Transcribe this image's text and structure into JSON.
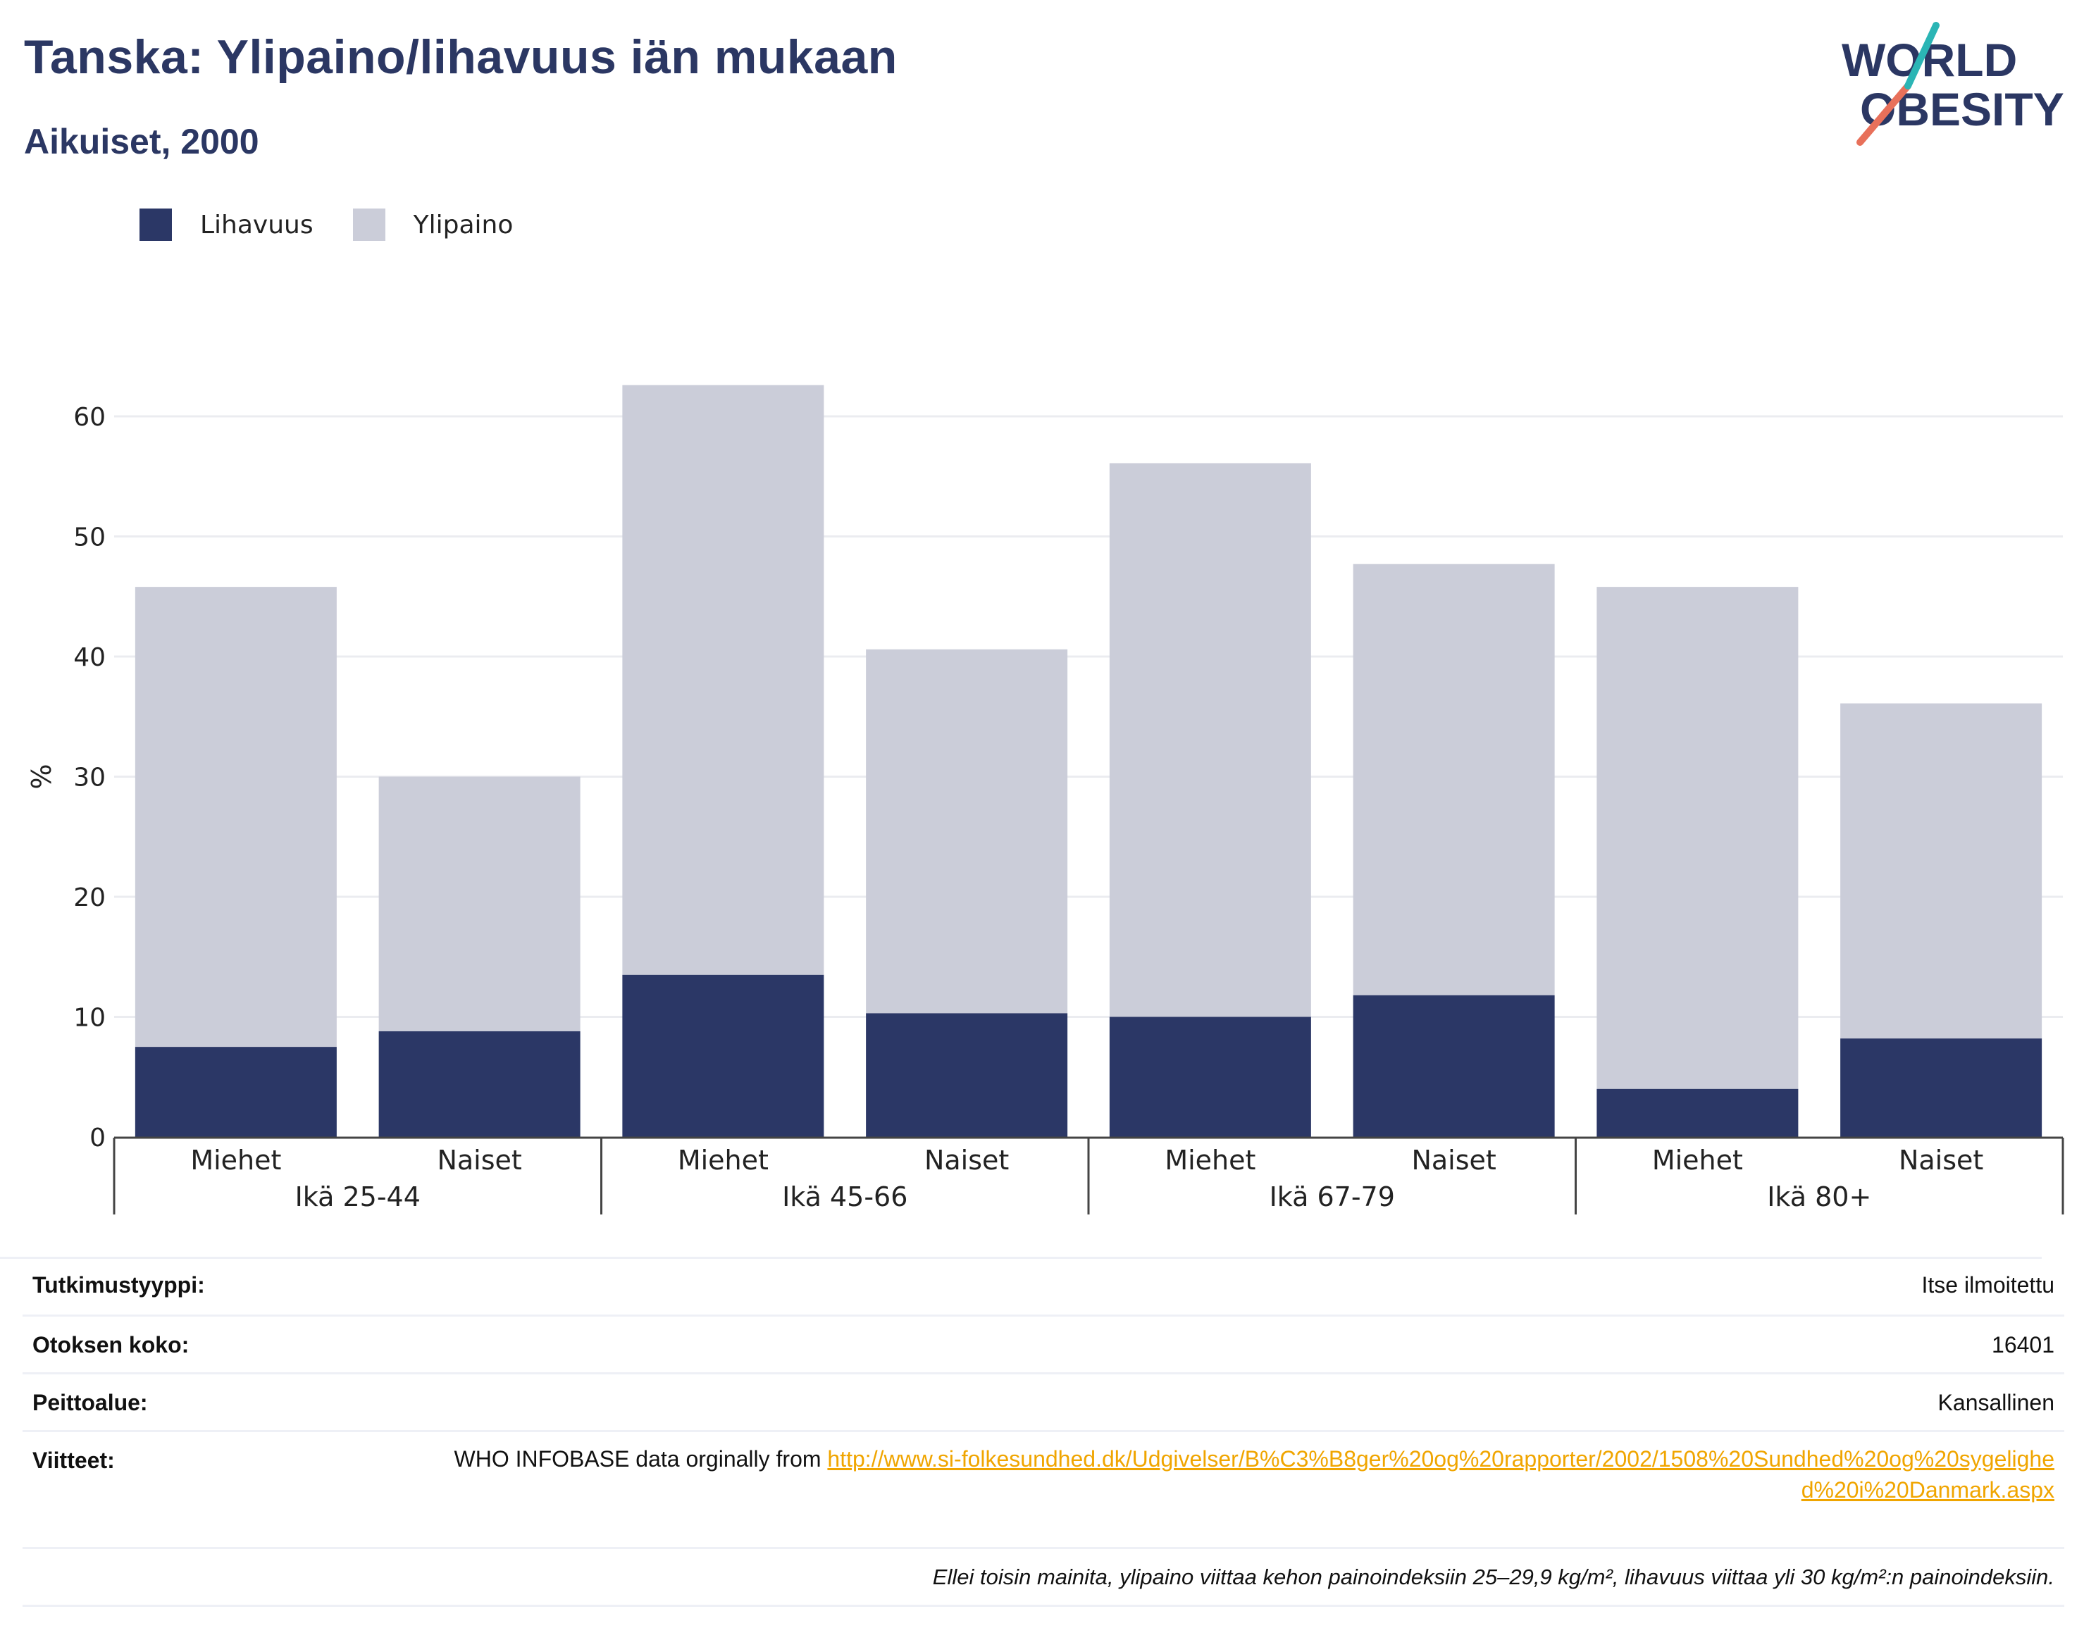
{
  "title": "Tanska: Ylipaino/lihavuus iän mukaan",
  "subtitle": "Aikuiset, 2000",
  "logo": {
    "line1": "WORLD",
    "line2": "OBESITY"
  },
  "colors": {
    "obesity": "#2b3766",
    "overweight": "#cbcdd9",
    "title": "#2b3763",
    "link": "#f0a500"
  },
  "legend": [
    {
      "label": "Lihavuus",
      "color": "#2b3766"
    },
    {
      "label": "Ylipaino",
      "color": "#cbcdd9"
    }
  ],
  "chart_data": {
    "type": "bar",
    "stacked": true,
    "ylabel": "%",
    "ylim": [
      0,
      65
    ],
    "yticks": [
      0,
      10,
      20,
      30,
      40,
      50,
      60
    ],
    "grid": true,
    "legend_position": "top-left",
    "groups": [
      "Ikä 25-44",
      "Ikä 45-66",
      "Ikä 67-79",
      "Ikä 80+"
    ],
    "categories": [
      "Miehet",
      "Naiset",
      "Miehet",
      "Naiset",
      "Miehet",
      "Naiset",
      "Miehet",
      "Naiset"
    ],
    "series": [
      {
        "name": "Lihavuus",
        "values": [
          7.5,
          8.8,
          13.5,
          10.3,
          10.0,
          11.8,
          4.0,
          8.2
        ]
      },
      {
        "name": "Ylipaino",
        "values": [
          38.3,
          21.2,
          49.1,
          30.3,
          46.1,
          35.9,
          41.8,
          27.9
        ]
      }
    ]
  },
  "meta": {
    "study_type": {
      "label": "Tutkimustyyppi:",
      "value": "Itse ilmoitettu"
    },
    "sample_size": {
      "label": "Otoksen koko:",
      "value": "16401"
    },
    "coverage": {
      "label": "Peittoalue:",
      "value": "Kansallinen"
    },
    "references": {
      "label": "Viitteet:",
      "text": "WHO INFOBASE data orginally from ",
      "link": "http://www.si-folkesundhed.dk/Udgivelser/B%C3%B8ger%20og%20rapporter/2002/1508%20Sundhed%20og%20sygelighed%20i%20Danmark.aspx"
    },
    "footnote": "Ellei toisin mainita, ylipaino viittaa kehon painoindeksiin 25–29,9 kg/m², lihavuus viittaa yli 30 kg/m²:n painoindeksiin."
  }
}
